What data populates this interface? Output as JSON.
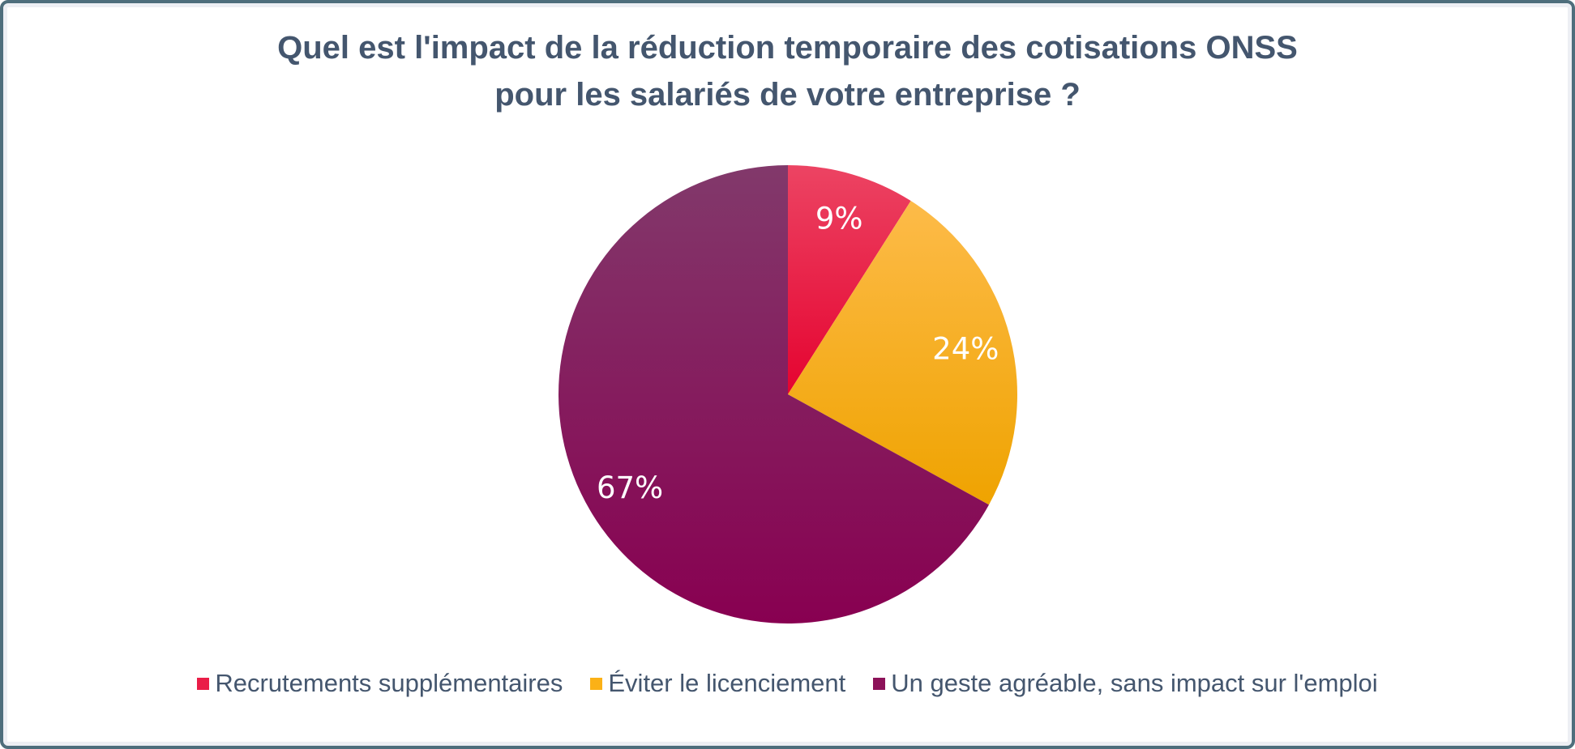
{
  "frame": {
    "border_color": "#4e6e7c",
    "background_color": "#ffffff"
  },
  "title": {
    "text": "Quel est l'impact de la réduction temporaire des cotisations ONSS\npour les salariés de votre entreprise ?",
    "color": "#44566e"
  },
  "chart_data": {
    "type": "pie",
    "title": "Quel est l'impact de la réduction temporaire des cotisations ONSS pour les salariés de votre entreprise ?",
    "start_angle_deg": 0,
    "direction": "clockwise",
    "data_label_color": "#ffffff",
    "legend_position": "bottom",
    "slices": [
      {
        "label": "Recrutements supplémentaires",
        "value": 9,
        "display": "9%",
        "gradient_top": "#ec4463",
        "gradient_bottom": "#e50330",
        "legend_color": "#ea1d47"
      },
      {
        "label": "Éviter le licenciement",
        "value": 24,
        "display": "24%",
        "gradient_top": "#fdbb49",
        "gradient_bottom": "#efa300",
        "legend_color": "#fbb116"
      },
      {
        "label": "Un geste agréable, sans impact sur l'emploi",
        "value": 67,
        "display": "67%",
        "gradient_top": "#82396b",
        "gradient_bottom": "#880051",
        "legend_color": "#8c1259"
      }
    ]
  },
  "legend": {
    "text_color": "#44566e"
  }
}
